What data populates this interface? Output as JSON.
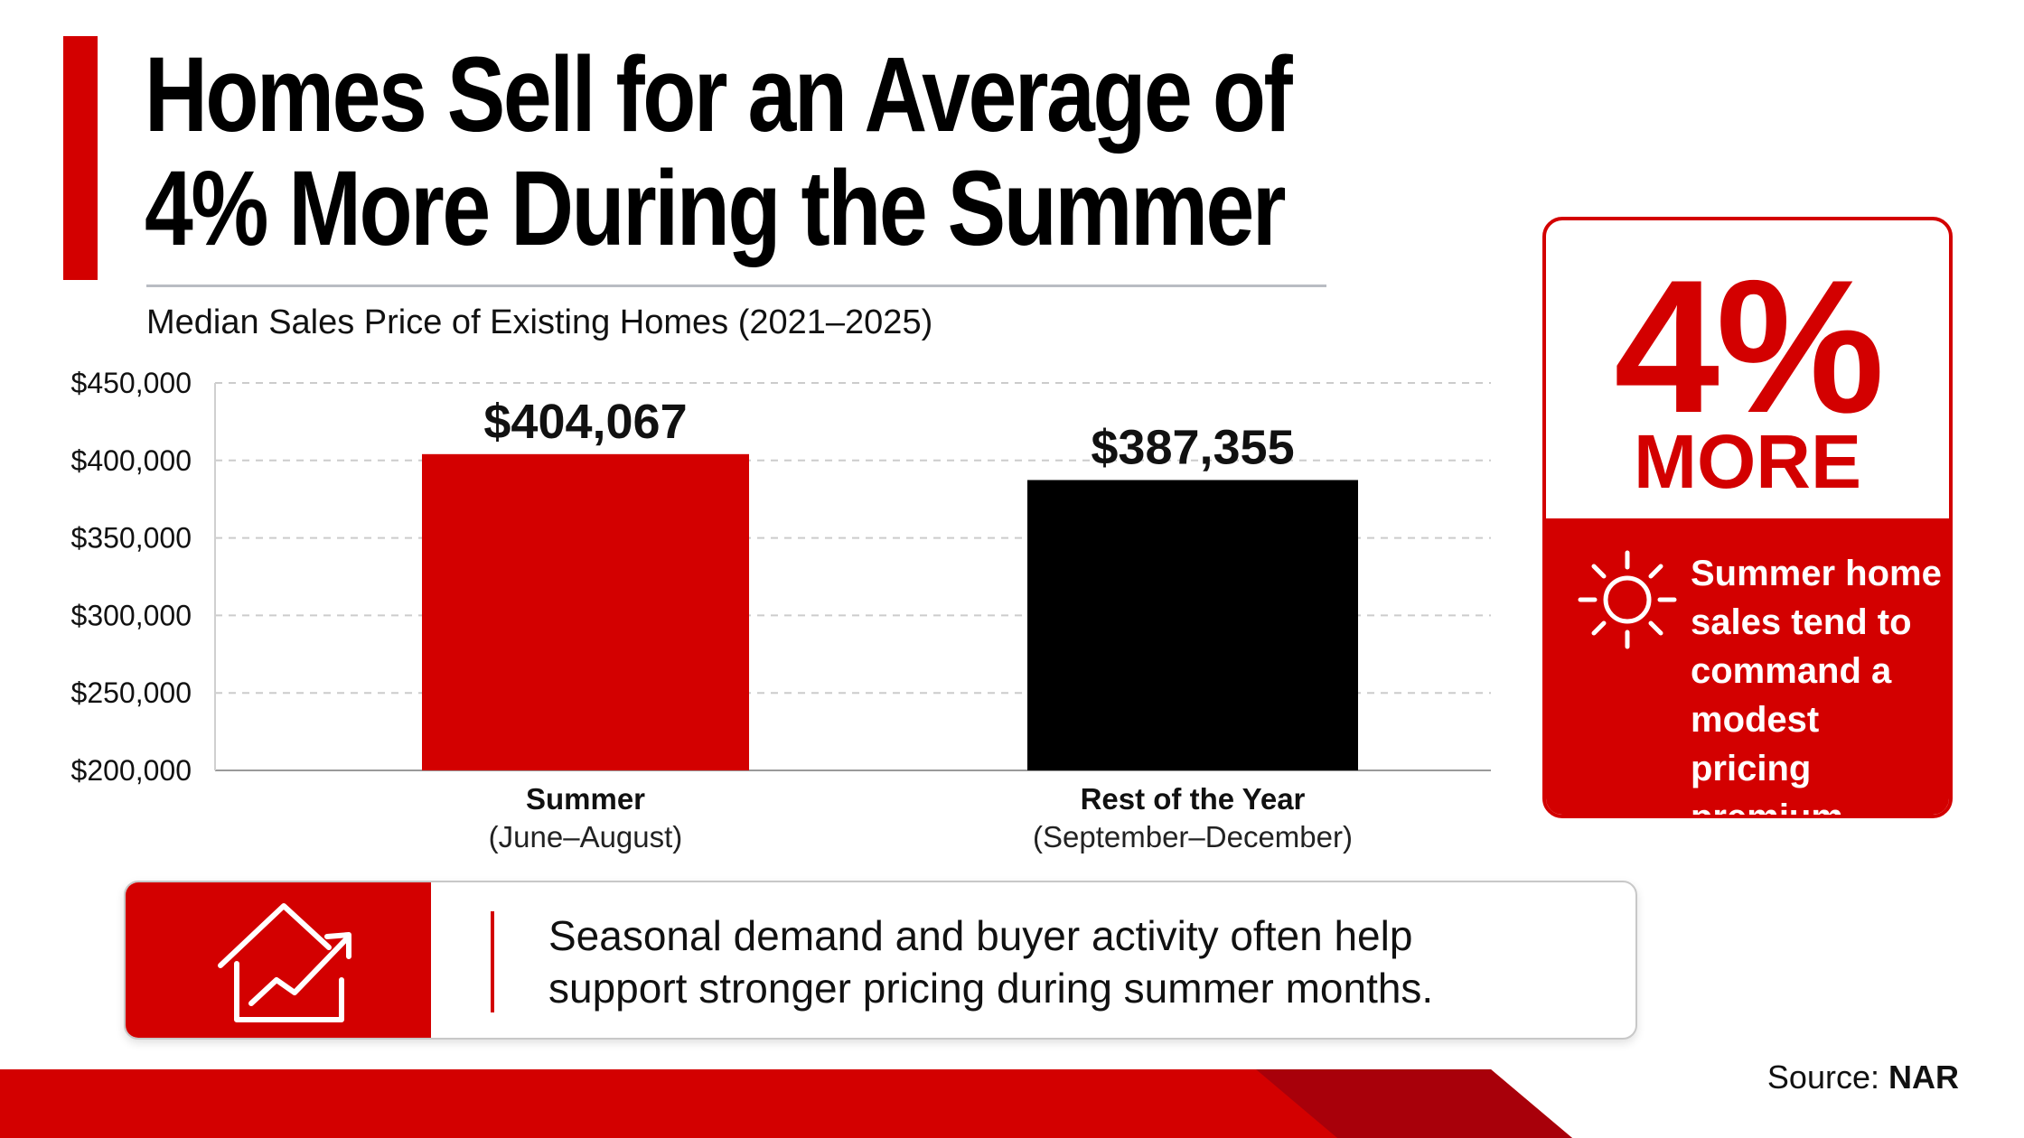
{
  "title_line1": "Homes Sell for an Average of",
  "title_line2": "4% More During the Summer",
  "colors": {
    "accent": "#d30000",
    "bar_primary": "#d30000",
    "bar_secondary": "#000000",
    "grid": "#cccccc"
  },
  "chart_data": {
    "type": "bar",
    "title": "Median Sales Price of Existing Homes (2021–2025)",
    "xlabel": "",
    "ylabel": "",
    "ylim": [
      200000,
      450000
    ],
    "yticks": [
      {
        "value": 450000,
        "label": "$450,000"
      },
      {
        "value": 400000,
        "label": "$400,000"
      },
      {
        "value": 350000,
        "label": "$350,000"
      },
      {
        "value": 300000,
        "label": "$300,000"
      },
      {
        "value": 250000,
        "label": "$250,000"
      },
      {
        "value": 200000,
        "label": "$200,000"
      }
    ],
    "grid": true,
    "legend": "none",
    "bars": [
      {
        "category": "Summer",
        "sublabel": "(June–August)",
        "value": 404067,
        "value_label": "$404,067",
        "color": "#d30000"
      },
      {
        "category": "Rest of the Year",
        "sublabel": "(September–December)",
        "value": 387355,
        "value_label": "$387,355",
        "color": "#000000"
      }
    ]
  },
  "stat_card": {
    "figure": "4%",
    "figure_label": "MORE",
    "icon": "sun-icon",
    "text": "Summer home sales tend to command a modest pricing premium."
  },
  "callout": {
    "icon": "house-trend-icon",
    "line1": "Seasonal demand and buyer activity often help",
    "line2": "support stronger pricing during summer months."
  },
  "source": {
    "label": "Source:",
    "name": "NAR"
  }
}
